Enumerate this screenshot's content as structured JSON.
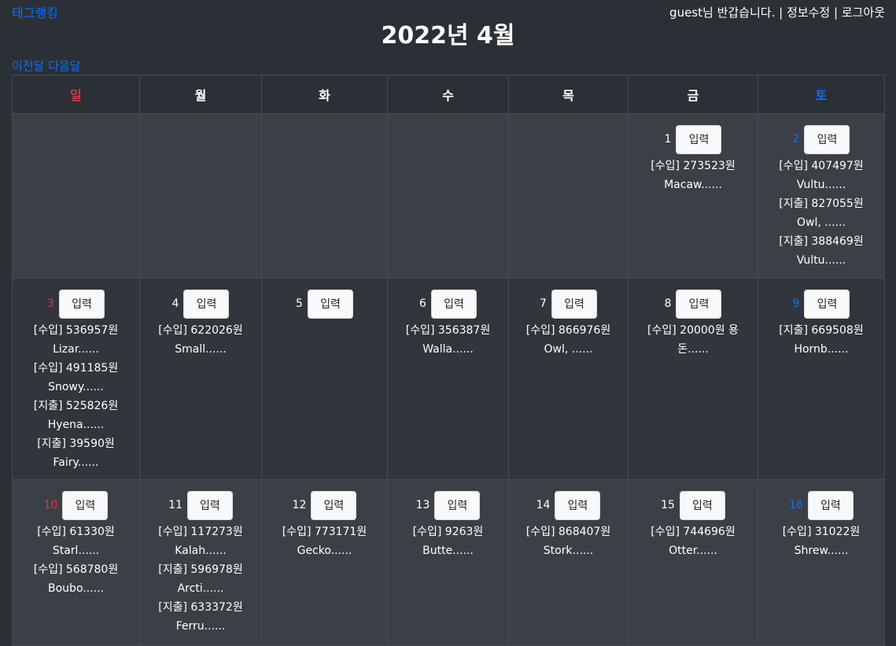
{
  "nav": {
    "brand": "태그랭킹",
    "greeting": "guest님 반갑습니다.",
    "separator": "|",
    "edit_info": "정보수정",
    "logout": "로그아웃"
  },
  "calendar": {
    "title": "2022년 4월",
    "prev_label": "이전달",
    "next_label": "다음달",
    "button_label": "입력",
    "weekdays": [
      "일",
      "월",
      "화",
      "수",
      "목",
      "금",
      "토"
    ],
    "weeks": [
      [
        null,
        null,
        null,
        null,
        null,
        {
          "day": "1",
          "entries": [
            "[수입] 273523원",
            "Macaw......"
          ]
        },
        {
          "day": "2",
          "entries": [
            "[수입] 407497원",
            "Vultu......",
            "[지출] 827055원",
            "Owl, ......",
            "[지출] 388469원",
            "Vultu......"
          ]
        }
      ],
      [
        {
          "day": "3",
          "entries": [
            "[수입] 536957원",
            "Lizar......",
            "[수입] 491185원",
            "Snowy......",
            "[지출] 525826원",
            "Hyena......",
            "[지출] 39590원",
            "Fairy......"
          ]
        },
        {
          "day": "4",
          "entries": [
            "[수입] 622026원",
            "Small......"
          ]
        },
        {
          "day": "5",
          "entries": []
        },
        {
          "day": "6",
          "entries": [
            "[수입] 356387원",
            "Walla......"
          ]
        },
        {
          "day": "7",
          "entries": [
            "[수입] 866976원",
            "Owl, ......"
          ]
        },
        {
          "day": "8",
          "entries": [
            "[수입] 20000원 용",
            "돈......"
          ]
        },
        {
          "day": "9",
          "entries": [
            "[지출] 669508원",
            "Hornb......"
          ]
        }
      ],
      [
        {
          "day": "10",
          "entries": [
            "[수입] 61330원",
            "Starl......",
            "[수입] 568780원",
            "Boubo......"
          ]
        },
        {
          "day": "11",
          "entries": [
            "[수입] 117273원",
            "Kalah......",
            "[지출] 596978원",
            "Arcti......",
            "[지출] 633372원",
            "Ferru......"
          ]
        },
        {
          "day": "12",
          "entries": [
            "[수입] 773171원",
            "Gecko......"
          ]
        },
        {
          "day": "13",
          "entries": [
            "[수입] 9263원",
            "Butte......"
          ]
        },
        {
          "day": "14",
          "entries": [
            "[수입] 868407원",
            "Stork......"
          ]
        },
        {
          "day": "15",
          "entries": [
            "[수입] 744696원",
            "Otter......"
          ]
        },
        {
          "day": "16",
          "entries": [
            "[수입] 31022원",
            "Shrew......"
          ]
        }
      ]
    ]
  },
  "colors": {
    "background": "#2b3036",
    "link": "#0d6efd",
    "sunday": "#dc3545",
    "saturday": "#0d6efd"
  }
}
